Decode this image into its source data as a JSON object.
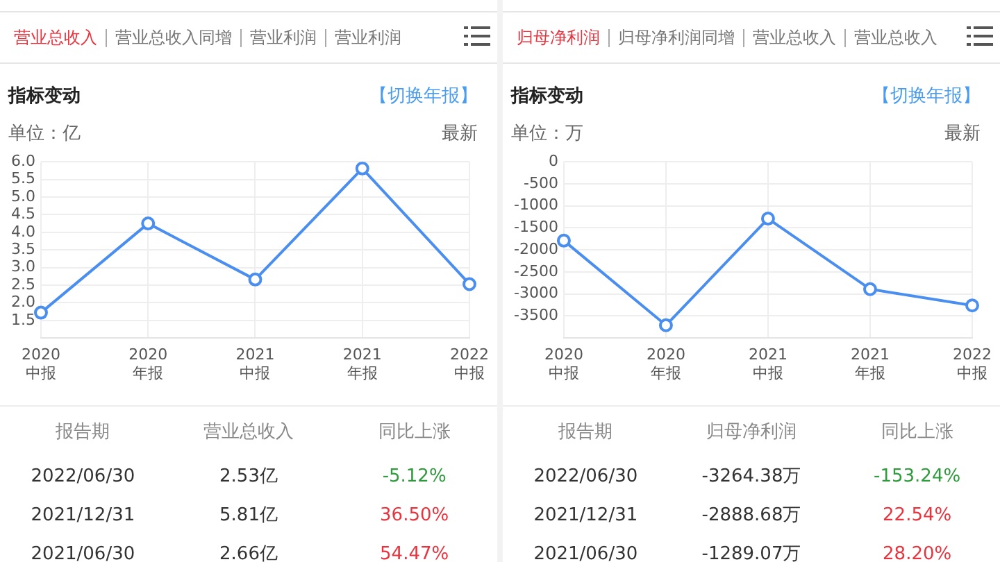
{
  "chart_data": [
    {
      "type": "line",
      "title": "指标变动",
      "ylabel": "单位：亿",
      "categories": [
        "2020 中报",
        "2020 年报",
        "2021 中报",
        "2021 年报",
        "2022 中报"
      ],
      "series": [
        {
          "name": "营业总收入",
          "color": "#4a8ff0",
          "values": [
            1.72,
            4.25,
            2.66,
            5.81,
            2.53
          ]
        }
      ],
      "ylim": [
        1.0,
        6.0
      ],
      "yticks": [
        {
          "value": 1.5,
          "label": "1.5"
        },
        {
          "value": 2,
          "label": "2.0"
        },
        {
          "value": 2.5,
          "label": "2.5"
        },
        {
          "value": 3,
          "label": "3.0"
        },
        {
          "value": 3.5,
          "label": "3.5"
        },
        {
          "value": 4,
          "label": "4.0"
        },
        {
          "value": 4.5,
          "label": "4.5"
        },
        {
          "value": 5,
          "label": "5.0"
        },
        {
          "value": 5.5,
          "label": "5.5"
        },
        {
          "value": 6,
          "label": "6.0"
        }
      ],
      "grid": true,
      "legend": false,
      "marker": "circle",
      "line_style": "solid",
      "annotations": [
        "【切换年报】",
        "最新",
        "报告期",
        "同比上涨",
        "2022/06/30",
        "2.53亿",
        "-5.12%",
        "2021/12/31",
        "5.81亿",
        "36.50%",
        "2021/06/30",
        "2.66亿",
        "54.47%",
        "营业总收入",
        "营业总收入同增",
        "营业利润",
        "营业利润"
      ]
    },
    {
      "type": "line",
      "title": "指标变动",
      "ylabel": "单位：万",
      "categories": [
        "2020 中报",
        "2020 年报",
        "2021 中报",
        "2021 年报",
        "2022 中报"
      ],
      "series": [
        {
          "name": "归母净利润",
          "color": "#4a8ff0",
          "values": [
            -1790,
            -3710,
            -1290,
            -2890,
            -3260
          ]
        }
      ],
      "ylim": [
        -4000,
        0
      ],
      "yticks": [
        -3500,
        -3000,
        -2500,
        -2000,
        -1500,
        -1000,
        -500,
        0
      ],
      "grid": true,
      "legend": false,
      "marker": "circle",
      "line_style": "solid",
      "annotations": [
        "【切换年报】",
        "最新",
        "报告期",
        "同比上涨",
        "2022/06/30",
        "-3264.38万",
        "-153.24%",
        "2021/12/31",
        "-2888.68万",
        "22.54%",
        "2021/06/30",
        "-1289.07万",
        "28.20%",
        "归母净利润",
        "归母净利润同增",
        "营业总收入",
        "营业总收入"
      ]
    }
  ]
}
